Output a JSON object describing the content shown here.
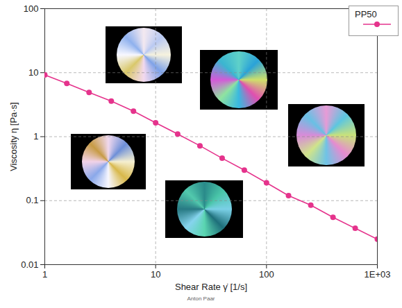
{
  "chart_data": {
    "type": "line",
    "x_label": "Shear Rate γ̇ [1/s]",
    "y_label": "Viscosity η [Pa·s]",
    "caption": "Anton Paar",
    "x": [
      1,
      1.58,
      2.51,
      3.98,
      6.31,
      10,
      15.8,
      25.1,
      39.8,
      63.1,
      100,
      158,
      251,
      398,
      631,
      1000
    ],
    "series": [
      {
        "name": "PP50",
        "color": "#e5338c",
        "marker": "circle",
        "line_style": "solid",
        "values": [
          9.2,
          6.8,
          4.9,
          3.6,
          2.5,
          1.65,
          1.1,
          0.72,
          0.46,
          0.3,
          0.19,
          0.12,
          0.085,
          0.055,
          0.037,
          0.025
        ]
      }
    ],
    "xlim": [
      1,
      1000
    ],
    "ylim": [
      0.01,
      100
    ],
    "xticks": [
      1,
      10,
      100,
      {
        "value": 1000,
        "label": "1E+03"
      }
    ],
    "yticks": [
      0.01,
      0.1,
      1,
      10,
      100
    ],
    "log": true,
    "grid": true,
    "legend": "top-right"
  }
}
